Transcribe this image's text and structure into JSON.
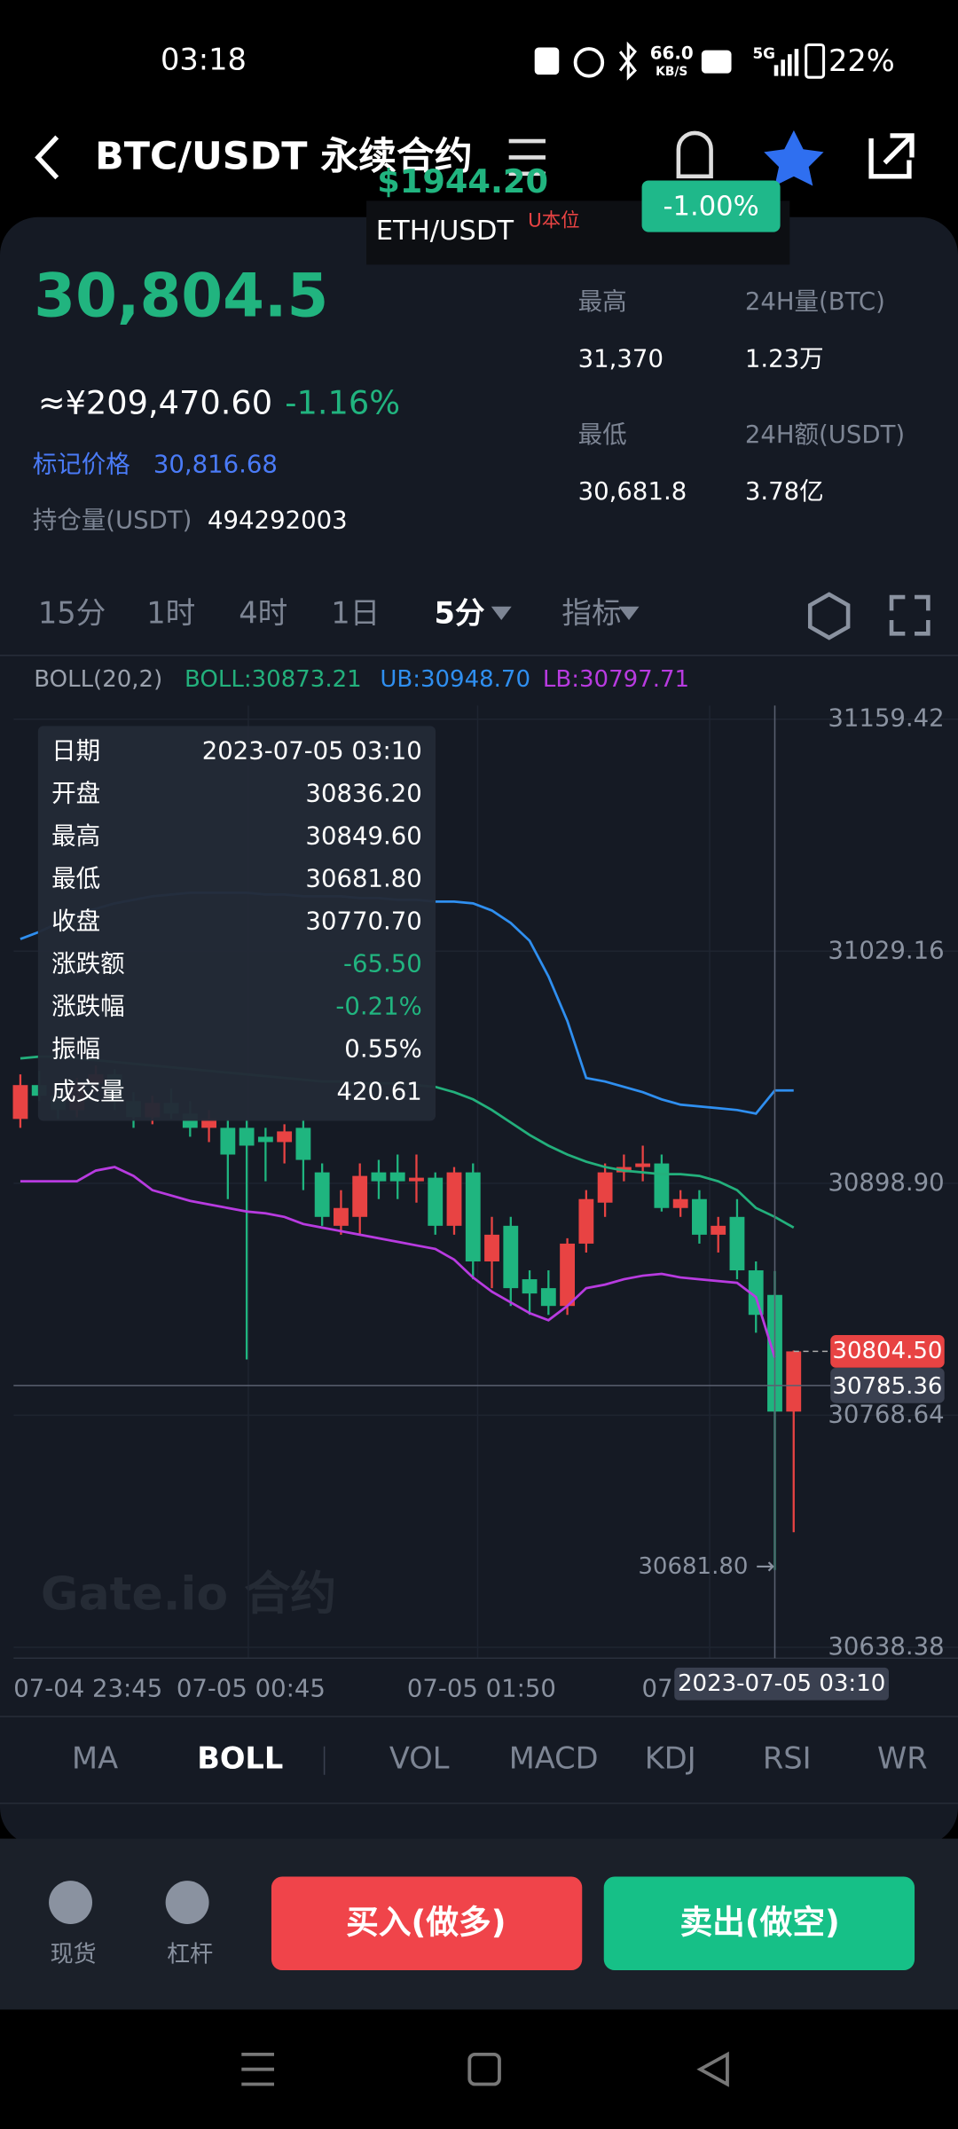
{
  "status_bar": {
    "time": "03:18",
    "network_speed": "66.0",
    "network_unit": "KB/S",
    "signal": "5G",
    "battery": "22%"
  },
  "header": {
    "title": "BTC/USDT 永续合约"
  },
  "popup": {
    "price": "$1944.20",
    "pair": "ETH/USDT",
    "tag": "U本位",
    "change": "-1.00%"
  },
  "ticker": {
    "last_price": "30,804.5",
    "cny_price": "≈¥209,470.60",
    "change": "-1.16%",
    "mark_price_label": "标记价格",
    "mark_price": "30,816.68",
    "open_interest_label": "持仓量(USDT)",
    "open_interest": "494292003",
    "stats": [
      {
        "label": "最高",
        "value": "31,370"
      },
      {
        "label": "24H量(BTC)",
        "value": "1.23万"
      },
      {
        "label": "最低",
        "value": "30,681.8"
      },
      {
        "label": "24H额(USDT)",
        "value": "3.78亿"
      }
    ]
  },
  "intervals": [
    "15分",
    "1时",
    "4时",
    "1日",
    "5分",
    "指标"
  ],
  "indicator_legend": {
    "name": "BOLL(20,2)",
    "boll": "BOLL:30873.21",
    "ub": "UB:30948.70",
    "lb": "LB:30797.71"
  },
  "chart": {
    "type": "candlestick",
    "ylim": [
      30638.38,
      31159.42
    ],
    "yticks": [
      31159.42,
      31029.16,
      {
        "value": 30898.9,
        "label": "30898.90"
      },
      30768.64,
      30638.38
    ],
    "xlabels": [
      "07-04 23:45",
      "07-05 00:45",
      "07-05 01:50",
      "07"
    ],
    "up_color": "#e84343",
    "down_color": "#1fb57f",
    "candles": [
      {
        "open": 30935,
        "high": 30960,
        "low": 30930,
        "close": 30954
      },
      {
        "open": 30954,
        "high": 30962,
        "low": 30945,
        "close": 30948
      },
      {
        "open": 30948,
        "high": 30955,
        "low": 30935,
        "close": 30940
      },
      {
        "open": 30940,
        "high": 30958,
        "low": 30936,
        "close": 30955
      },
      {
        "open": 30955,
        "high": 30965,
        "low": 30950,
        "close": 30960
      },
      {
        "open": 30960,
        "high": 30963,
        "low": 30940,
        "close": 30945
      },
      {
        "open": 30945,
        "high": 30950,
        "low": 30930,
        "close": 30936
      },
      {
        "open": 30936,
        "high": 30948,
        "low": 30932,
        "close": 30944
      },
      {
        "open": 30944,
        "high": 30952,
        "low": 30935,
        "close": 30938
      },
      {
        "open": 30938,
        "high": 30945,
        "low": 30925,
        "close": 30930
      },
      {
        "open": 30930,
        "high": 30940,
        "low": 30922,
        "close": 30935
      },
      {
        "open": 30930,
        "high": 30935,
        "low": 30890,
        "close": 30915
      },
      {
        "open": 30930,
        "high": 30935,
        "low": 30800,
        "close": 30920
      },
      {
        "open": 30925,
        "high": 30930,
        "low": 30900,
        "close": 30922
      },
      {
        "open": 30922,
        "high": 30932,
        "low": 30910,
        "close": 30928
      },
      {
        "open": 30930,
        "high": 30935,
        "low": 30895,
        "close": 30912
      },
      {
        "open": 30905,
        "high": 30910,
        "low": 30875,
        "close": 30880
      },
      {
        "open": 30875,
        "high": 30895,
        "low": 30870,
        "close": 30885
      },
      {
        "open": 30880,
        "high": 30910,
        "low": 30870,
        "close": 30903
      },
      {
        "open": 30905,
        "high": 30912,
        "low": 30890,
        "close": 30900
      },
      {
        "open": 30905,
        "high": 30915,
        "low": 30890,
        "close": 30900
      },
      {
        "open": 30900,
        "high": 30915,
        "low": 30888,
        "close": 30902
      },
      {
        "open": 30902,
        "high": 30905,
        "low": 30870,
        "close": 30875
      },
      {
        "open": 30875,
        "high": 30908,
        "low": 30870,
        "close": 30905
      },
      {
        "open": 30905,
        "high": 30910,
        "low": 30845,
        "close": 30855
      },
      {
        "open": 30855,
        "high": 30880,
        "low": 30840,
        "close": 30870
      },
      {
        "open": 30875,
        "high": 30880,
        "low": 30830,
        "close": 30840
      },
      {
        "open": 30845,
        "high": 30850,
        "low": 30825,
        "close": 30837
      },
      {
        "open": 30840,
        "high": 30850,
        "low": 30825,
        "close": 30830
      },
      {
        "open": 30830,
        "high": 30868,
        "low": 30825,
        "close": 30865
      },
      {
        "open": 30865,
        "high": 30895,
        "low": 30860,
        "close": 30890
      },
      {
        "open": 30888,
        "high": 30910,
        "low": 30880,
        "close": 30905
      },
      {
        "open": 30905,
        "high": 30915,
        "low": 30900,
        "close": 30908
      },
      {
        "open": 30908,
        "high": 30920,
        "low": 30900,
        "close": 30910
      },
      {
        "open": 30910,
        "high": 30915,
        "low": 30883,
        "close": 30885
      },
      {
        "open": 30885,
        "high": 30895,
        "low": 30880,
        "close": 30890
      },
      {
        "open": 30890,
        "high": 30895,
        "low": 30865,
        "close": 30870
      },
      {
        "open": 30870,
        "high": 30880,
        "low": 30860,
        "close": 30875
      },
      {
        "open": 30880,
        "high": 30890,
        "low": 30845,
        "close": 30850
      },
      {
        "open": 30850,
        "high": 30855,
        "low": 30815,
        "close": 30825
      },
      {
        "open": 30836.2,
        "high": 30849.6,
        "low": 30681.8,
        "close": 30770.7
      },
      {
        "open": 30770.7,
        "high": 30805,
        "low": 30703,
        "close": 30804.5
      }
    ],
    "series": [
      {
        "color": "#2f8ff0",
        "values": [
          31036,
          31040,
          31045,
          31050,
          31053,
          31056,
          31058,
          31060,
          31061,
          31062,
          31062,
          31062,
          31062,
          31061,
          31061,
          31060,
          31060,
          31060,
          31059,
          31059,
          31058,
          31058,
          31057,
          31057,
          31056,
          31052,
          31045,
          31035,
          31015,
          30990,
          30958,
          30956,
          30953,
          30950,
          30946,
          30943,
          30942,
          30941,
          30940,
          30938,
          30951,
          30951
        ]
      },
      {
        "color": "#23b07c",
        "values": [
          30969,
          30970,
          30970,
          30969,
          30968,
          30967,
          30966,
          30965,
          30964,
          30963,
          30962,
          30961,
          30960,
          30959,
          30958,
          30957,
          30956,
          30956,
          30955,
          30955,
          30955,
          30954,
          30953,
          30950,
          30946,
          30940,
          30933,
          30926,
          30920,
          30915,
          30911,
          30908,
          30906,
          30905,
          30904,
          30904,
          30903,
          30900,
          30895,
          30885,
          30880,
          30874
        ]
      },
      {
        "color": "#b83be0",
        "values": [
          30900,
          30900,
          30900,
          30900,
          30906,
          30908,
          30903,
          30895,
          30892,
          30889,
          30887,
          30885,
          30883,
          30882,
          30880,
          30876,
          30874,
          30872,
          30870,
          30868,
          30866,
          30864,
          30862,
          30856,
          30846,
          30838,
          30832,
          30826,
          30822,
          30830,
          30840,
          30842,
          30845,
          30847,
          30848,
          30846,
          30845,
          30844,
          30843,
          30835,
          30801,
          null
        ]
      }
    ],
    "last_price": {
      "value": 30804.5,
      "label": "30804.50"
    },
    "crosshair_price": 30785.36,
    "low_annotation": "30681.80 →",
    "crosshair_time": "2023-07-05 03:10",
    "watermark": "Gate.io 合约",
    "tooltip": [
      [
        "日期",
        "2023-07-05 03:10"
      ],
      [
        "开盘",
        "30836.20"
      ],
      [
        "最高",
        "30849.60"
      ],
      [
        "最低",
        "30681.80"
      ],
      [
        "收盘",
        "30770.70"
      ],
      [
        "涨跌额",
        "-65.50"
      ],
      [
        "涨跌幅",
        "-0.21%"
      ],
      [
        "振幅",
        "0.55%"
      ],
      [
        "成交量",
        "420.61"
      ]
    ]
  },
  "indicator_tabs": [
    "MA",
    "BOLL",
    "VOL",
    "MACD",
    "KDJ",
    "RSI",
    "WR"
  ],
  "bottom": {
    "spot": "现货",
    "margin": "杠杆",
    "buy": "买入(做多)",
    "sell": "卖出(做空)"
  }
}
